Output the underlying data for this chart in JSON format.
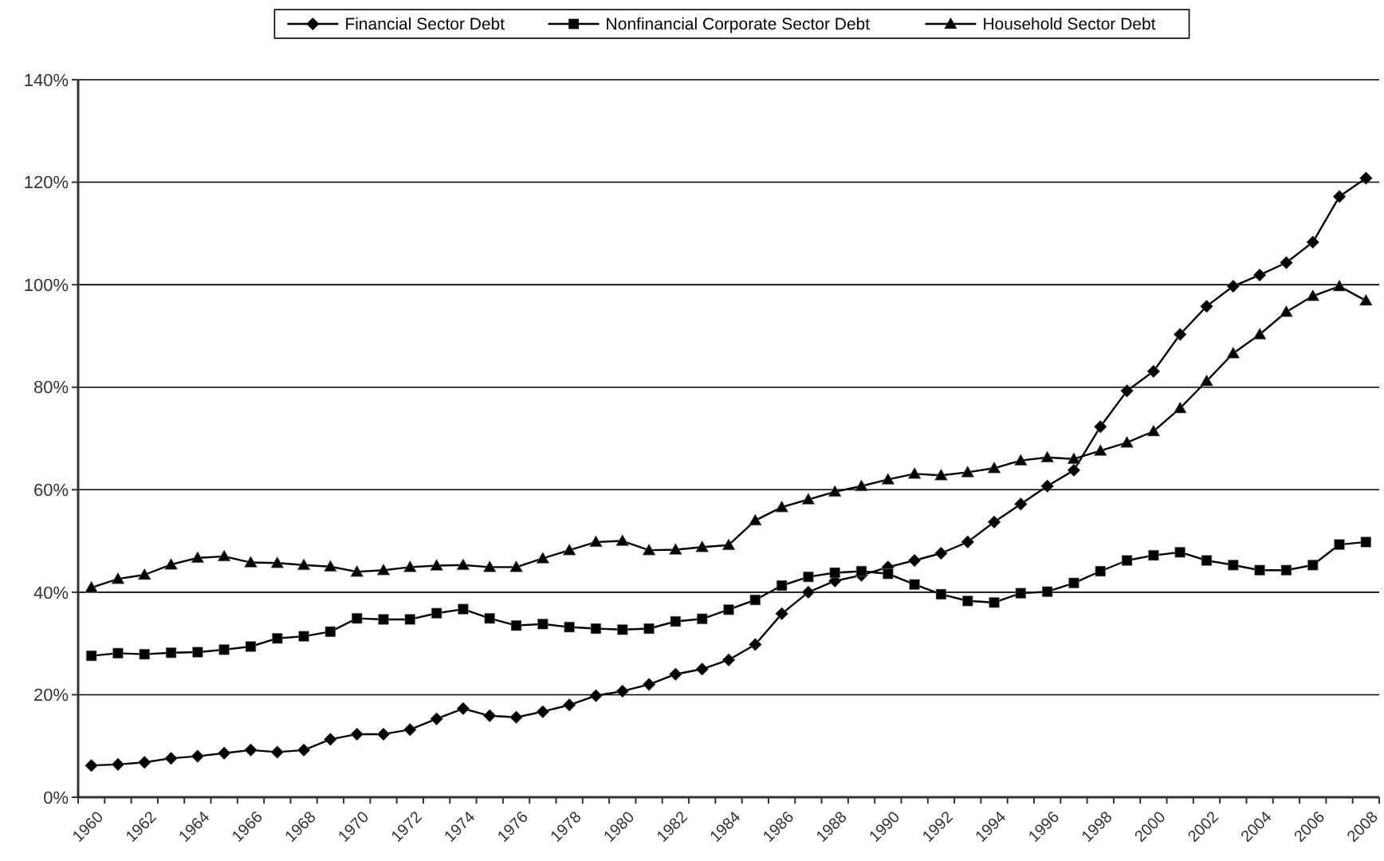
{
  "chart_data": {
    "type": "line",
    "categories": [
      "1960",
      null,
      "1962",
      null,
      "1964",
      null,
      "1966",
      null,
      "1968",
      null,
      "1970",
      null,
      "1972",
      null,
      "1974",
      null,
      "1976",
      null,
      "1978",
      null,
      "1980",
      null,
      "1982",
      null,
      "1984",
      null,
      "1986",
      null,
      "1988",
      null,
      "1990",
      null,
      "1992",
      null,
      "1994",
      null,
      "1996",
      null,
      "1998",
      null,
      "2000",
      null,
      "2002",
      null,
      "2004",
      null,
      "2006",
      null,
      "2008"
    ],
    "ylim": [
      0,
      140
    ],
    "yticks": [
      {
        "value": 0,
        "label": "0%"
      },
      {
        "value": 20,
        "label": "20%"
      },
      {
        "value": 40,
        "label": "40%"
      },
      {
        "value": 60,
        "label": "60%"
      },
      {
        "value": 80,
        "label": "80%"
      },
      {
        "value": 100,
        "label": "100%"
      },
      {
        "value": 120,
        "label": "120%"
      },
      {
        "value": 140,
        "label": "140%"
      }
    ],
    "grid": "y",
    "legend": "top",
    "line_style": "solid",
    "series": [
      {
        "name": "Financial Sector Debt",
        "color": "#000000",
        "marker": "diamond",
        "values": [
          6.2,
          6.4,
          6.8,
          7.6,
          8.0,
          8.6,
          9.2,
          8.8,
          9.2,
          11.3,
          12.3,
          12.3,
          13.2,
          15.3,
          17.3,
          15.9,
          15.6,
          16.7,
          18.0,
          19.8,
          20.7,
          22.0,
          24.0,
          25.0,
          26.8,
          29.8,
          35.8,
          40.0,
          42.2,
          43.3,
          44.9,
          46.2,
          47.6,
          49.8,
          53.7,
          57.2,
          60.7,
          63.8,
          72.3,
          79.3,
          83.1,
          90.3,
          95.8,
          99.7,
          101.9,
          104.3,
          108.3,
          117.2,
          120.8
        ]
      },
      {
        "name": "Nonfinancial Corporate Sector Debt",
        "color": "#000000",
        "marker": "square",
        "values": [
          27.6,
          28.1,
          27.9,
          28.2,
          28.3,
          28.8,
          29.4,
          31.0,
          31.4,
          32.3,
          34.9,
          34.7,
          34.7,
          35.9,
          36.7,
          34.9,
          33.5,
          33.8,
          33.2,
          32.9,
          32.7,
          32.9,
          34.3,
          34.8,
          36.6,
          38.5,
          41.3,
          43.0,
          43.8,
          44.1,
          43.6,
          41.5,
          39.6,
          38.3,
          38.0,
          39.8,
          40.1,
          41.8,
          44.1,
          46.2,
          47.2,
          47.8,
          46.2,
          45.3,
          44.3,
          44.3,
          45.3,
          49.3,
          49.8
        ]
      },
      {
        "name": "Household Sector Debt",
        "color": "#000000",
        "marker": "triangle",
        "values": [
          40.9,
          42.6,
          43.4,
          45.4,
          46.7,
          47.0,
          45.8,
          45.7,
          45.3,
          45.0,
          44.0,
          44.3,
          44.9,
          45.2,
          45.3,
          44.9,
          44.9,
          46.6,
          48.2,
          49.8,
          50.0,
          48.2,
          48.3,
          48.8,
          49.2,
          54.0,
          56.6,
          58.1,
          59.6,
          60.7,
          62.0,
          63.1,
          62.8,
          63.4,
          64.2,
          65.7,
          66.3,
          66.0,
          67.6,
          69.2,
          71.4,
          75.9,
          81.2,
          86.6,
          90.3,
          94.7,
          97.8,
          99.7,
          96.9
        ]
      }
    ]
  }
}
